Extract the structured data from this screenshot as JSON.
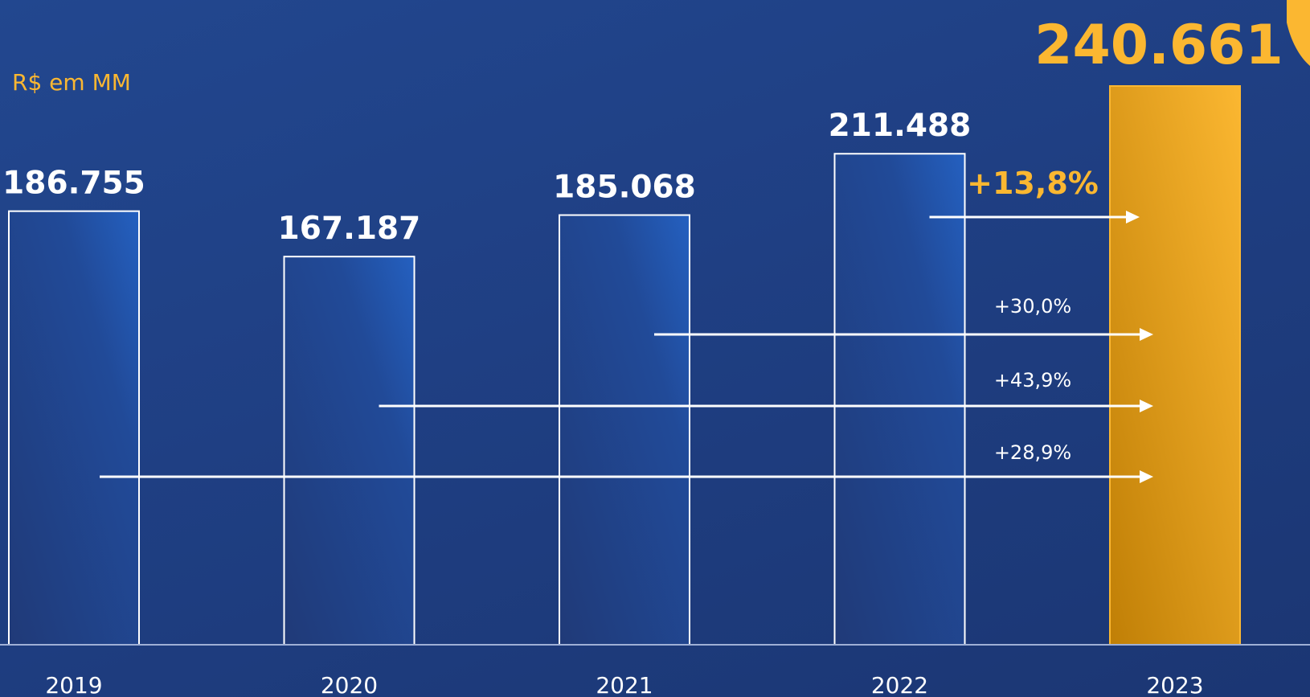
{
  "colors": {
    "accent": "#fbb731",
    "bar_outline": "#ffffff",
    "text": "#ffffff"
  },
  "chart_data": {
    "type": "bar",
    "unit_label": "R$ em MM",
    "categories": [
      "2019",
      "2020",
      "2021",
      "2022",
      "2023"
    ],
    "values": [
      186755,
      167187,
      185068,
      211488,
      240661
    ],
    "value_labels": [
      "186.755",
      "167.187",
      "185.068",
      "211.488",
      "240.661"
    ],
    "highlight_index": 4,
    "ylim": [
      0,
      240661
    ],
    "growth_annotations": [
      {
        "label": "+13,8%",
        "from": "2022",
        "to": "2023",
        "emphasis": true
      },
      {
        "label": "+30,0%",
        "from": "2021",
        "to": "2023",
        "emphasis": false
      },
      {
        "label": "+43,9%",
        "from": "2020",
        "to": "2023",
        "emphasis": false
      },
      {
        "label": "+28,9%",
        "from": "2019",
        "to": "2023",
        "emphasis": false
      }
    ]
  }
}
